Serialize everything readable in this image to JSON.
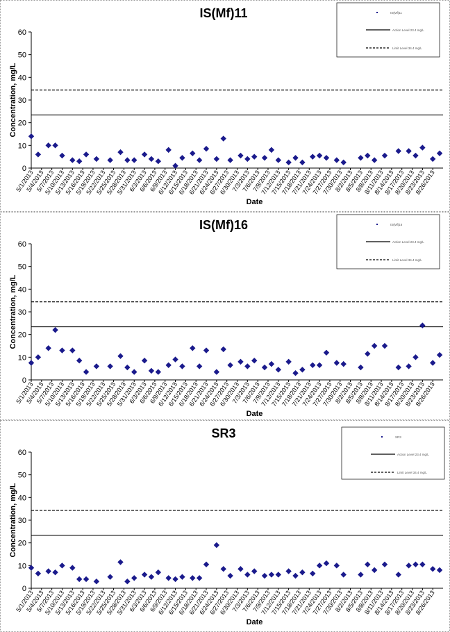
{
  "colors": {
    "marker": "#1a1a8c",
    "line": "#000000",
    "panel_border": "#999999"
  },
  "chart_data": [
    {
      "type": "scatter",
      "title": "IS(Mf)11",
      "xlabel": "Date",
      "ylabel": "Concentration, mg/L",
      "ylim": [
        0,
        60
      ],
      "yticks": [
        0,
        10,
        20,
        30,
        40,
        50,
        60
      ],
      "xlim": [
        "5/1/2013",
        "8/29/2013"
      ],
      "xticks": [
        "5/1/2013",
        "5/4/2013",
        "5/7/2013",
        "5/10/2013",
        "5/13/2013",
        "5/16/2013",
        "5/19/2013",
        "5/22/2013",
        "5/25/2013",
        "5/28/2013",
        "5/31/2013",
        "6/3/2013",
        "6/6/2013",
        "6/9/2013",
        "6/12/2013",
        "6/15/2013",
        "6/18/2013",
        "6/21/2013",
        "6/24/2013",
        "6/27/2013",
        "6/30/2013",
        "7/3/2013",
        "7/6/2013",
        "7/9/2013",
        "7/12/2013",
        "7/15/2013",
        "7/18/2013",
        "7/21/2013",
        "7/24/2013",
        "7/27/2013",
        "7/30/2013",
        "8/2/2013",
        "8/5/2013",
        "8/8/2013",
        "8/11/2013",
        "8/14/2013",
        "8/17/2013",
        "8/20/2013",
        "8/23/2013",
        "8/26/2013"
      ],
      "grid": false,
      "legend_position": "top-right",
      "legend_entries": [
        "IS(Mf)11",
        "Action Level 23.4 mg/L",
        "Limit Level 34.4 mg/L"
      ],
      "reference_lines": [
        {
          "style": "solid",
          "y": 23.4
        },
        {
          "style": "dashed",
          "y": 34.4
        }
      ],
      "series": [
        {
          "x": [
            "5/1/2013",
            "5/3/2013",
            "5/6/2013",
            "5/8/2013",
            "5/10/2013",
            "5/13/2013",
            "5/15/2013",
            "5/17/2013",
            "5/20/2013",
            "5/24/2013",
            "5/27/2013",
            "5/29/2013",
            "5/31/2013",
            "6/3/2013",
            "6/5/2013",
            "6/7/2013",
            "6/10/2013",
            "6/12/2013",
            "6/14/2013",
            "6/17/2013",
            "6/19/2013",
            "6/21/2013",
            "6/24/2013",
            "6/26/2013",
            "6/28/2013",
            "7/1/2013",
            "7/3/2013",
            "7/5/2013",
            "7/8/2013",
            "7/10/2013",
            "7/12/2013",
            "7/15/2013",
            "7/17/2013",
            "7/19/2013",
            "7/22/2013",
            "7/24/2013",
            "7/26/2013",
            "7/29/2013",
            "7/31/2013",
            "8/5/2013",
            "8/7/2013",
            "8/9/2013",
            "8/12/2013",
            "8/16/2013",
            "8/19/2013",
            "8/21/2013",
            "8/23/2013",
            "8/26/2013",
            "8/28/2013"
          ],
          "values": [
            14,
            6,
            10,
            10,
            5.5,
            3.5,
            3,
            6,
            4,
            3.5,
            7,
            3.5,
            3.5,
            6,
            4,
            3,
            8,
            1,
            4.5,
            6.5,
            3.5,
            8.5,
            4,
            13,
            3.5,
            5.5,
            4,
            5,
            4.5,
            8,
            3.5,
            2.5,
            4.5,
            2.5,
            5,
            5.5,
            4.5,
            3.5,
            2.5,
            4.5,
            5.5,
            3.5,
            5.5,
            7.5,
            7.5,
            5.5,
            9,
            4,
            6.5
          ]
        }
      ]
    },
    {
      "type": "scatter",
      "title": "IS(Mf)16",
      "xlabel": "Date",
      "ylabel": "Concentration, mg/L",
      "ylim": [
        0,
        60
      ],
      "yticks": [
        0,
        10,
        20,
        30,
        40,
        50,
        60
      ],
      "xlim": [
        "5/1/2013",
        "8/29/2013"
      ],
      "xticks": [
        "5/1/2013",
        "5/4/2013",
        "5/7/2013",
        "5/10/2013",
        "5/13/2013",
        "5/16/2013",
        "5/19/2013",
        "5/22/2013",
        "5/25/2013",
        "5/28/2013",
        "5/31/2013",
        "6/3/2013",
        "6/6/2013",
        "6/9/2013",
        "6/12/2013",
        "6/15/2013",
        "6/18/2013",
        "6/21/2013",
        "6/24/2013",
        "6/27/2013",
        "6/30/2013",
        "7/3/2013",
        "7/6/2013",
        "7/9/2013",
        "7/12/2013",
        "7/15/2013",
        "7/18/2013",
        "7/21/2013",
        "7/24/2013",
        "7/27/2013",
        "7/30/2013",
        "8/2/2013",
        "8/5/2013",
        "8/8/2013",
        "8/11/2013",
        "8/14/2013",
        "8/17/2013",
        "8/20/2013",
        "8/23/2013",
        "8/26/2013"
      ],
      "grid": false,
      "legend_position": "top-right",
      "legend_entries": [
        "IS(Mf)16",
        "Action Level 23.4 mg/L",
        "Limit Level 34.4 mg/L"
      ],
      "reference_lines": [
        {
          "style": "solid",
          "y": 23.4
        },
        {
          "style": "dashed",
          "y": 34.4
        }
      ],
      "series": [
        {
          "x": [
            "5/1/2013",
            "5/3/2013",
            "5/6/2013",
            "5/8/2013",
            "5/10/2013",
            "5/13/2013",
            "5/15/2013",
            "5/17/2013",
            "5/20/2013",
            "5/24/2013",
            "5/27/2013",
            "5/29/2013",
            "5/31/2013",
            "6/3/2013",
            "6/5/2013",
            "6/7/2013",
            "6/10/2013",
            "6/12/2013",
            "6/14/2013",
            "6/17/2013",
            "6/19/2013",
            "6/21/2013",
            "6/24/2013",
            "6/26/2013",
            "6/28/2013",
            "7/1/2013",
            "7/3/2013",
            "7/5/2013",
            "7/8/2013",
            "7/10/2013",
            "7/12/2013",
            "7/15/2013",
            "7/17/2013",
            "7/19/2013",
            "7/22/2013",
            "7/24/2013",
            "7/26/2013",
            "7/29/2013",
            "7/31/2013",
            "8/5/2013",
            "8/7/2013",
            "8/9/2013",
            "8/12/2013",
            "8/16/2013",
            "8/19/2013",
            "8/21/2013",
            "8/23/2013",
            "8/26/2013",
            "8/28/2013"
          ],
          "values": [
            7.5,
            10,
            14,
            22,
            13,
            13,
            8.5,
            3.5,
            6,
            6,
            10.5,
            5.5,
            3.5,
            8.5,
            4,
            3.5,
            6.5,
            9,
            6,
            14,
            6,
            13,
            3.5,
            13.5,
            6.5,
            8,
            6,
            8.5,
            5.5,
            7,
            4.5,
            8,
            3,
            4.5,
            6.5,
            6.5,
            12,
            7.5,
            7,
            5.5,
            11.5,
            15,
            15,
            5.5,
            6,
            10,
            24,
            7.5,
            11
          ]
        }
      ]
    },
    {
      "type": "scatter",
      "title": "SR3",
      "xlabel": "Date",
      "ylabel": "Concentration, mg/L",
      "ylim": [
        0,
        60
      ],
      "yticks": [
        0,
        10,
        20,
        30,
        40,
        50,
        60
      ],
      "xlim": [
        "5/1/2013",
        "8/29/2013"
      ],
      "xticks": [
        "5/1/2013",
        "5/4/2013",
        "5/7/2013",
        "5/10/2013",
        "5/13/2013",
        "5/16/2013",
        "5/19/2013",
        "5/22/2013",
        "5/25/2013",
        "5/28/2013",
        "5/31/2013",
        "6/3/2013",
        "6/6/2013",
        "6/9/2013",
        "6/12/2013",
        "6/15/2013",
        "6/18/2013",
        "6/21/2013",
        "6/24/2013",
        "6/27/2013",
        "6/30/2013",
        "7/3/2013",
        "7/6/2013",
        "7/9/2013",
        "7/12/2013",
        "7/15/2013",
        "7/18/2013",
        "7/21/2013",
        "7/24/2013",
        "7/27/2013",
        "7/30/2013",
        "8/2/2013",
        "8/5/2013",
        "8/8/2013",
        "8/11/2013",
        "8/14/2013",
        "8/17/2013",
        "8/20/2013",
        "8/23/2013",
        "8/26/2013"
      ],
      "grid": false,
      "legend_position": "top-right",
      "legend_entries": [
        "SR3",
        "Action Level 23.4 mg/L",
        "Limit Level 34.4 mg/L"
      ],
      "reference_lines": [
        {
          "style": "solid",
          "y": 23.4
        },
        {
          "style": "dashed",
          "y": 34.4
        }
      ],
      "series": [
        {
          "x": [
            "5/1/2013",
            "5/3/2013",
            "5/6/2013",
            "5/8/2013",
            "5/10/2013",
            "5/13/2013",
            "5/15/2013",
            "5/17/2013",
            "5/20/2013",
            "5/24/2013",
            "5/27/2013",
            "5/29/2013",
            "5/31/2013",
            "6/3/2013",
            "6/5/2013",
            "6/7/2013",
            "6/10/2013",
            "6/12/2013",
            "6/14/2013",
            "6/17/2013",
            "6/19/2013",
            "6/21/2013",
            "6/24/2013",
            "6/26/2013",
            "6/28/2013",
            "7/1/2013",
            "7/3/2013",
            "7/5/2013",
            "7/8/2013",
            "7/10/2013",
            "7/12/2013",
            "7/15/2013",
            "7/17/2013",
            "7/19/2013",
            "7/22/2013",
            "7/24/2013",
            "7/26/2013",
            "7/29/2013",
            "7/31/2013",
            "8/5/2013",
            "8/7/2013",
            "8/9/2013",
            "8/12/2013",
            "8/16/2013",
            "8/19/2013",
            "8/21/2013",
            "8/23/2013",
            "8/26/2013",
            "8/28/2013"
          ],
          "values": [
            9,
            6.5,
            7.5,
            7,
            10,
            9,
            4,
            4,
            3,
            5,
            11.5,
            3,
            4.5,
            6,
            5,
            7,
            4.5,
            4,
            5,
            4.5,
            4.5,
            10.5,
            19,
            8.5,
            5.5,
            8.5,
            6,
            7.5,
            5.5,
            6,
            6,
            7.5,
            5.5,
            7,
            6.5,
            10,
            11,
            10,
            6,
            6,
            10.5,
            8,
            10.5,
            6,
            10,
            10.5,
            10.5,
            8.5,
            8
          ]
        }
      ]
    }
  ]
}
